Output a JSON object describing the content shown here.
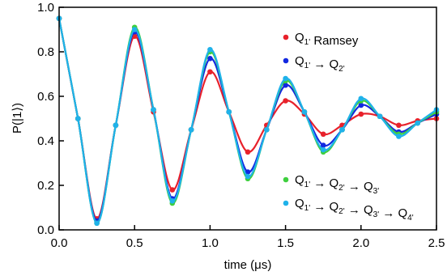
{
  "chart_data": {
    "type": "scatter",
    "xlabel": "time (μs)",
    "ylabel": "P(|1⟩)",
    "xlim": [
      0,
      2.5
    ],
    "ylim": [
      0,
      1.0
    ],
    "xticks": [
      "0.0",
      "0.5",
      "1.0",
      "1.5",
      "2.0",
      "2.5"
    ],
    "yticks": [
      "0.0",
      "0.2",
      "0.4",
      "0.6",
      "0.8",
      "1.0"
    ],
    "grid": false,
    "legend_placement": [
      "top-right",
      "bottom-right"
    ],
    "x": [
      0.0,
      0.125,
      0.25,
      0.375,
      0.5,
      0.625,
      0.75,
      0.875,
      1.0,
      1.125,
      1.25,
      1.375,
      1.5,
      1.625,
      1.75,
      1.875,
      2.0,
      2.125,
      2.25,
      2.375,
      2.5
    ],
    "series": [
      {
        "name": "Q1' Ramsey",
        "color": "#e8212b",
        "values": [
          0.95,
          0.5,
          0.05,
          0.47,
          0.87,
          0.53,
          0.18,
          0.45,
          0.71,
          0.53,
          0.35,
          0.47,
          0.58,
          0.52,
          0.43,
          0.47,
          0.52,
          0.51,
          0.47,
          0.49,
          0.5
        ]
      },
      {
        "name": "Q1' → Q2'",
        "color": "#1228e0",
        "values": [
          0.95,
          0.5,
          0.04,
          0.47,
          0.89,
          0.54,
          0.14,
          0.45,
          0.77,
          0.53,
          0.26,
          0.45,
          0.65,
          0.53,
          0.38,
          0.45,
          0.56,
          0.51,
          0.44,
          0.48,
          0.52
        ]
      },
      {
        "name": "Q1' → Q2' → Q3'",
        "color": "#3ecf3e",
        "values": [
          0.95,
          0.5,
          0.03,
          0.47,
          0.91,
          0.54,
          0.12,
          0.45,
          0.8,
          0.53,
          0.23,
          0.45,
          0.67,
          0.53,
          0.35,
          0.45,
          0.58,
          0.51,
          0.43,
          0.48,
          0.53
        ]
      },
      {
        "name": "Q1' → Q2' → Q3' → Q4'",
        "color": "#1fb2ea",
        "values": [
          0.95,
          0.5,
          0.03,
          0.47,
          0.9,
          0.54,
          0.13,
          0.45,
          0.81,
          0.53,
          0.24,
          0.45,
          0.68,
          0.53,
          0.36,
          0.45,
          0.59,
          0.51,
          0.42,
          0.48,
          0.54
        ]
      }
    ]
  },
  "legend": {
    "top": [
      {
        "series": 0,
        "parts": [
          {
            "t": "Q"
          },
          {
            "t": "1'",
            "sub": true
          },
          {
            "t": " Ramsey"
          }
        ]
      },
      {
        "series": 1,
        "parts": [
          {
            "t": "Q"
          },
          {
            "t": "1'",
            "sub": true
          },
          {
            "t": " → Q"
          },
          {
            "t": "2'",
            "sub": true
          }
        ]
      }
    ],
    "bottom": [
      {
        "series": 2,
        "parts": [
          {
            "t": "Q"
          },
          {
            "t": "1'",
            "sub": true
          },
          {
            "t": " → Q"
          },
          {
            "t": "2'",
            "sub": true
          },
          {
            "t": " → Q"
          },
          {
            "t": "3'",
            "sub": true
          }
        ]
      },
      {
        "series": 3,
        "parts": [
          {
            "t": "Q"
          },
          {
            "t": "1'",
            "sub": true
          },
          {
            "t": " → Q"
          },
          {
            "t": "2'",
            "sub": true
          },
          {
            "t": " → Q"
          },
          {
            "t": "3'",
            "sub": true
          },
          {
            "t": " → Q"
          },
          {
            "t": "4'",
            "sub": true
          }
        ]
      }
    ]
  }
}
